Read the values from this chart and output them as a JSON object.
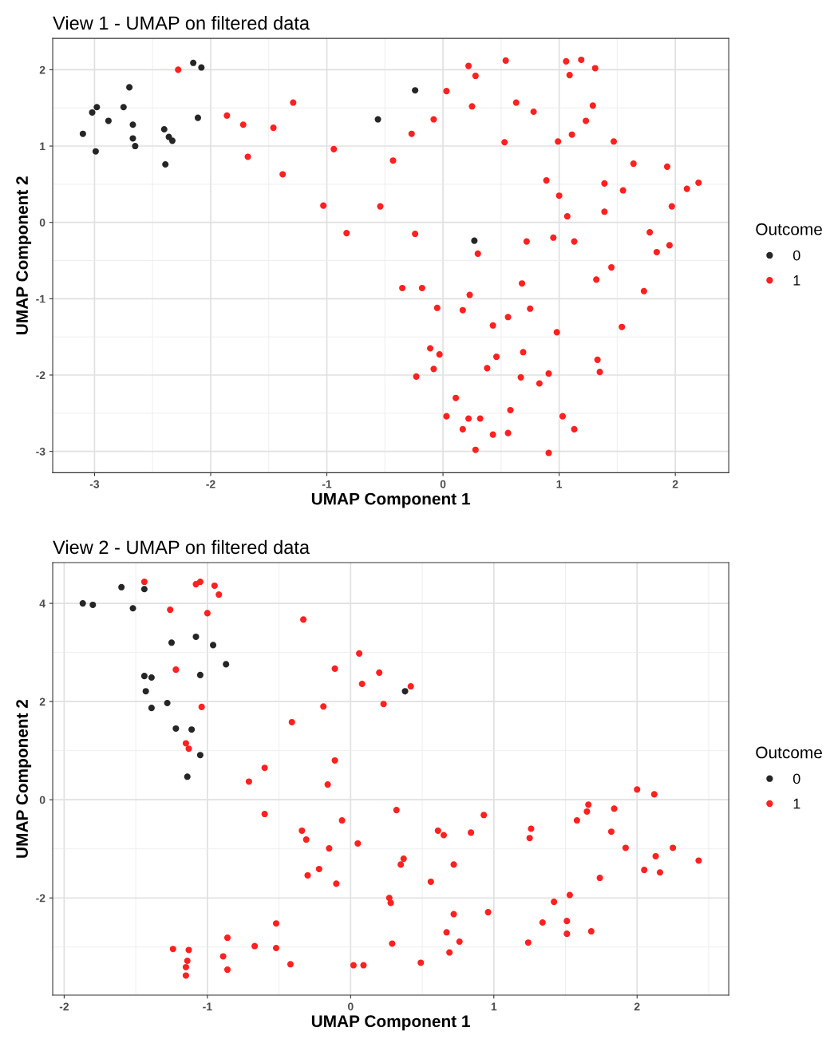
{
  "chart_data": [
    {
      "type": "scatter",
      "title": "View 1 - UMAP on filtered data",
      "xlabel": "UMAP Component 1",
      "ylabel": "UMAP Component 2",
      "legend_title": "Outcome",
      "legend": "right",
      "grid": true,
      "marker": "circle",
      "xlim": [
        -3.36,
        2.46
      ],
      "ylim": [
        -3.28,
        2.41
      ],
      "xticks": [
        -3,
        -2,
        -1,
        0,
        1,
        2
      ],
      "yticks": [
        -3,
        -2,
        -1,
        0,
        1,
        2
      ],
      "series": [
        {
          "name": "0",
          "color": "#262626",
          "x": [
            -3.1,
            -3.02,
            -2.98,
            -2.99,
            -2.88,
            -2.75,
            -2.7,
            -2.67,
            -2.67,
            -2.65,
            -2.4,
            -2.36,
            -2.33,
            -2.39,
            -2.15,
            -2.08,
            -2.11,
            -0.56,
            -0.24,
            0.27
          ],
          "values": [
            1.16,
            1.44,
            1.51,
            0.93,
            1.33,
            1.51,
            1.77,
            1.28,
            1.1,
            1.0,
            1.22,
            1.12,
            1.07,
            0.76,
            2.09,
            2.03,
            1.37,
            1.35,
            1.73,
            -0.24
          ]
        },
        {
          "name": "1",
          "color": "#ff2020",
          "x": [
            -2.28,
            -1.86,
            -1.72,
            -1.68,
            -1.46,
            -1.38,
            -1.29,
            -1.03,
            -0.94,
            -0.83,
            -0.54,
            -0.43,
            -0.35,
            -0.18,
            -0.27,
            -0.24,
            -0.08,
            0.03,
            0.22,
            0.28,
            0.25,
            0.54,
            0.63,
            0.78,
            0.53,
            1.06,
            1.19,
            1.31,
            1.09,
            1.29,
            1.23,
            1.11,
            0.99,
            1.47,
            1.64,
            1.93,
            2.1,
            2.2,
            1.97,
            1.55,
            1.39,
            1.39,
            0.89,
            1.0,
            1.07,
            1.13,
            0.95,
            0.72,
            0.3,
            1.78,
            1.84,
            1.95,
            1.45,
            1.32,
            1.73,
            0.68,
            0.75,
            0.23,
            0.17,
            -0.05,
            0.56,
            0.43,
            1.54,
            0.98,
            -0.11,
            -0.03,
            0.46,
            0.69,
            1.33,
            1.35,
            0.38,
            -0.08,
            -0.23,
            0.67,
            0.91,
            0.83,
            0.11,
            0.58,
            0.03,
            0.22,
            0.32,
            1.03,
            0.17,
            0.43,
            0.56,
            1.13,
            0.28,
            0.91
          ],
          "values": [
            2.0,
            1.4,
            1.28,
            0.86,
            1.24,
            0.63,
            1.57,
            0.22,
            0.96,
            -0.14,
            0.21,
            0.81,
            -0.86,
            -0.86,
            1.16,
            -0.15,
            1.35,
            1.72,
            2.05,
            1.92,
            1.52,
            2.12,
            1.57,
            1.45,
            1.05,
            2.11,
            2.13,
            2.02,
            1.93,
            1.53,
            1.33,
            1.15,
            1.06,
            1.06,
            0.77,
            0.73,
            0.44,
            0.52,
            0.21,
            0.42,
            0.51,
            0.14,
            0.55,
            0.35,
            0.08,
            -0.25,
            -0.2,
            -0.25,
            -0.41,
            -0.13,
            -0.39,
            -0.3,
            -0.59,
            -0.75,
            -0.9,
            -0.8,
            -1.13,
            -0.95,
            -1.15,
            -1.12,
            -1.24,
            -1.35,
            -1.37,
            -1.44,
            -1.65,
            -1.73,
            -1.76,
            -1.7,
            -1.8,
            -1.96,
            -1.91,
            -1.92,
            -2.02,
            -2.03,
            -1.98,
            -2.11,
            -2.3,
            -2.46,
            -2.54,
            -2.57,
            -2.57,
            -2.54,
            -2.71,
            -2.78,
            -2.76,
            -2.71,
            -2.98,
            -3.02
          ]
        }
      ]
    },
    {
      "type": "scatter",
      "title": "View 2 - UMAP on filtered data",
      "xlabel": "UMAP Component 1",
      "ylabel": "UMAP Component 2",
      "legend_title": "Outcome",
      "legend": "right",
      "grid": true,
      "marker": "circle",
      "xlim": [
        -2.08,
        2.64
      ],
      "ylim": [
        -3.98,
        4.83
      ],
      "xticks": [
        -2,
        -1,
        0,
        1,
        2
      ],
      "yticks": [
        -2,
        0,
        2,
        4
      ],
      "series": [
        {
          "name": "0",
          "color": "#262626",
          "x": [
            -1.87,
            -1.8,
            -1.6,
            -1.44,
            -1.52,
            -1.25,
            -1.08,
            -0.96,
            -0.87,
            -1.44,
            -1.39,
            -1.43,
            -1.39,
            -1.28,
            -1.22,
            -1.11,
            -1.05,
            -1.14,
            -1.05,
            0.38
          ],
          "values": [
            4.0,
            3.97,
            4.33,
            4.29,
            3.9,
            3.2,
            3.32,
            3.15,
            2.76,
            2.52,
            2.49,
            2.21,
            1.87,
            1.97,
            1.45,
            1.43,
            0.91,
            0.47,
            2.54,
            2.21
          ]
        },
        {
          "name": "1",
          "color": "#ff2020",
          "x": [
            -1.44,
            -1.08,
            -1.05,
            -0.95,
            -0.92,
            -1.26,
            -1.0,
            -1.22,
            -1.04,
            -1.15,
            -1.13,
            -0.33,
            0.06,
            -0.11,
            0.2,
            0.08,
            0.42,
            0.23,
            -0.19,
            -0.41,
            -0.11,
            -0.16,
            -0.6,
            -0.71,
            -0.6,
            -0.34,
            -0.31,
            -0.06,
            -0.15,
            0.05,
            -0.22,
            -0.3,
            -0.1,
            0.32,
            0.61,
            0.65,
            0.37,
            0.35,
            0.84,
            0.93,
            0.56,
            0.72,
            0.27,
            0.28,
            0.72,
            0.96,
            -0.52,
            0.67,
            0.76,
            0.29,
            0.69,
            0.49,
            0.02,
            0.09,
            -0.42,
            -0.67,
            -0.52,
            -0.86,
            -0.89,
            -0.86,
            -1.13,
            -1.24,
            -1.14,
            -1.15,
            -1.15,
            1.26,
            1.25,
            1.24,
            1.34,
            1.42,
            1.53,
            1.51,
            1.51,
            1.68,
            1.66,
            1.65,
            1.58,
            1.84,
            1.82,
            1.74,
            1.92,
            2.0,
            2.12,
            2.05,
            2.13,
            2.16,
            2.25,
            2.43
          ],
          "values": [
            4.44,
            4.39,
            4.44,
            4.36,
            4.18,
            3.87,
            3.8,
            2.65,
            1.89,
            1.15,
            1.04,
            3.67,
            2.98,
            2.67,
            2.59,
            2.36,
            2.31,
            1.95,
            1.9,
            1.58,
            0.8,
            0.31,
            0.65,
            0.37,
            -0.29,
            -0.63,
            -0.81,
            -0.42,
            -0.99,
            -0.89,
            -1.41,
            -1.54,
            -1.71,
            -0.21,
            -0.63,
            -0.72,
            -1.2,
            -1.32,
            -0.67,
            -0.31,
            -1.67,
            -1.32,
            -2.0,
            -2.1,
            -2.33,
            -2.29,
            -2.52,
            -2.7,
            -2.89,
            -2.93,
            -3.11,
            -3.32,
            -3.37,
            -3.37,
            -3.35,
            -2.98,
            -3.02,
            -2.81,
            -3.19,
            -3.46,
            -3.06,
            -3.04,
            -3.28,
            -3.41,
            -3.58,
            -0.59,
            -0.78,
            -2.91,
            -2.5,
            -2.08,
            -1.94,
            -2.47,
            -2.73,
            -2.68,
            -0.1,
            -0.24,
            -0.42,
            -0.18,
            -0.65,
            -1.59,
            -0.98,
            0.21,
            0.11,
            -1.43,
            -1.15,
            -1.48,
            -0.98,
            -1.24
          ]
        }
      ]
    }
  ]
}
